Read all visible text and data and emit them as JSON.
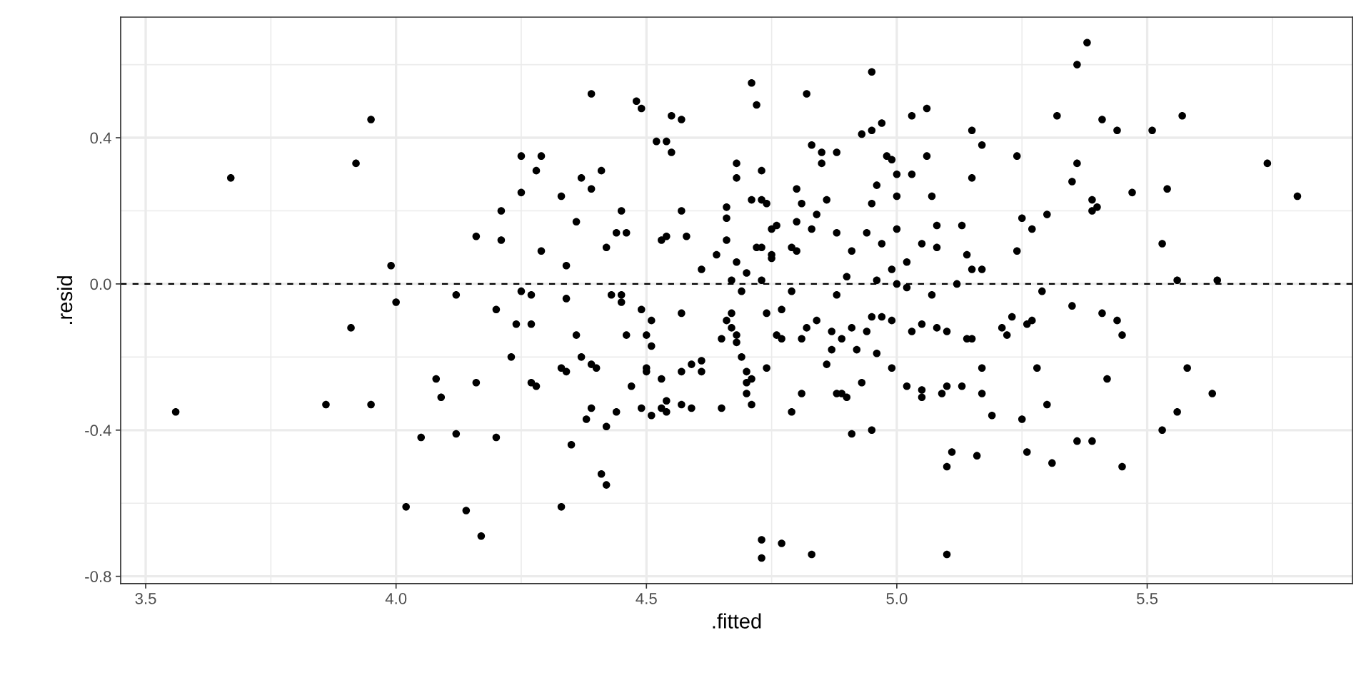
{
  "chart_data": {
    "type": "scatter",
    "xlabel": ".fitted",
    "ylabel": ".resid",
    "color": "#000000",
    "marker": "circle",
    "grid": true,
    "xlim": [
      3.45,
      5.91
    ],
    "ylim": [
      -0.82,
      0.73
    ],
    "xticks": [
      {
        "value": 3.5,
        "label": "3.5"
      },
      {
        "value": 3.75,
        "label": null
      },
      {
        "value": 4,
        "label": "4.0"
      },
      {
        "value": 4.25,
        "label": null
      },
      {
        "value": 4.5,
        "label": "4.5"
      },
      {
        "value": 4.75,
        "label": null
      },
      {
        "value": 5,
        "label": "5.0"
      },
      {
        "value": 5.25,
        "label": null
      },
      {
        "value": 5.5,
        "label": "5.5"
      },
      {
        "value": 5.75,
        "label": null
      }
    ],
    "yticks": [
      {
        "value": -0.8,
        "label": "-0.8"
      },
      {
        "value": -0.6,
        "label": null
      },
      {
        "value": -0.4,
        "label": "-0.4"
      },
      {
        "value": -0.2,
        "label": null
      },
      {
        "value": 0,
        "label": "0.0"
      },
      {
        "value": 0.2,
        "label": null
      },
      {
        "value": 0.4,
        "label": "0.4"
      },
      {
        "value": 0.6,
        "label": null
      }
    ],
    "ref_lines": [
      {
        "axis": "y",
        "value": 0,
        "line_style": "dashed",
        "color": "#000000"
      }
    ],
    "x": [
      3.56,
      3.67,
      3.86,
      3.91,
      3.92,
      3.95,
      3.95,
      3.99,
      4.0,
      4.02,
      4.05,
      4.08,
      4.09,
      4.12,
      4.12,
      4.14,
      4.16,
      4.16,
      4.17,
      4.2,
      4.2,
      4.21,
      4.21,
      4.23,
      4.24,
      4.25,
      4.25,
      4.25,
      4.28,
      4.29,
      4.33,
      4.29,
      4.27,
      4.34,
      4.34,
      4.36,
      4.37,
      4.39,
      4.39,
      4.41,
      4.42,
      4.43,
      4.45,
      4.44,
      4.46,
      4.45,
      4.45,
      4.48,
      4.49,
      4.49,
      4.52,
      4.54,
      4.55,
      4.55,
      4.57,
      4.53,
      4.54,
      4.57,
      4.58,
      4.57,
      4.61,
      4.64,
      4.66,
      4.66,
      4.66,
      4.68,
      4.67,
      4.67,
      4.69,
      4.68,
      4.68,
      4.7,
      4.71,
      4.71,
      4.72,
      4.72,
      4.73,
      4.73,
      4.73,
      4.73,
      4.74,
      4.75,
      4.76,
      4.75,
      4.75,
      4.74,
      4.77,
      4.79,
      4.8,
      4.8,
      4.79,
      4.8,
      4.81,
      4.82,
      4.83,
      4.83,
      4.84,
      4.85,
      4.85,
      4.86,
      4.88,
      4.88,
      4.88,
      4.9,
      4.91,
      4.93,
      4.95,
      4.94,
      4.95,
      4.95,
      4.96,
      4.96,
      4.97,
      4.97,
      4.98,
      4.99,
      4.99,
      5.0,
      5.0,
      5.0,
      5.0,
      5.02,
      5.02,
      5.03,
      5.03,
      5.05,
      5.06,
      5.06,
      5.07,
      5.08,
      5.08,
      5.07,
      4.27,
      4.27,
      4.28,
      4.36,
      4.37,
      4.33,
      4.34,
      4.39,
      4.4,
      4.39,
      4.38,
      4.42,
      4.35,
      4.41,
      4.42,
      4.33,
      4.46,
      4.44,
      4.47,
      4.51,
      4.5,
      4.51,
      4.5,
      4.5,
      4.49,
      4.51,
      4.53,
      4.53,
      4.54,
      4.54,
      4.57,
      4.59,
      4.61,
      4.61,
      4.57,
      4.59,
      4.65,
      4.65,
      4.66,
      4.67,
      4.68,
      4.68,
      4.69,
      4.7,
      4.71,
      4.7,
      4.7,
      4.71,
      4.73,
      4.73,
      4.77,
      4.83,
      4.74,
      4.76,
      4.77,
      4.81,
      4.81,
      4.79,
      4.82,
      4.84,
      4.87,
      4.86,
      4.87,
      4.89,
      4.91,
      4.92,
      4.94,
      4.93,
      4.88,
      4.89,
      4.9,
      4.91,
      4.95,
      4.95,
      4.97,
      4.96,
      4.99,
      4.99,
      5.03,
      5.05,
      5.02,
      5.05,
      5.05,
      5.08,
      5.09,
      5.12,
      5.13,
      5.14,
      5.15,
      5.15,
      5.15,
      5.17,
      5.17,
      5.24,
      5.24,
      5.25,
      5.27,
      5.29,
      5.3,
      5.32,
      5.35,
      5.35,
      5.36,
      5.36,
      5.38,
      5.39,
      5.39,
      5.4,
      5.41,
      5.44,
      5.47,
      5.51,
      5.54,
      5.53,
      5.56,
      5.57,
      5.64,
      5.74,
      5.8,
      5.1,
      5.14,
      5.15,
      5.1,
      5.13,
      5.17,
      5.17,
      5.19,
      5.11,
      5.1,
      5.16,
      5.1,
      5.21,
      5.22,
      5.23,
      5.26,
      5.27,
      5.28,
      5.3,
      5.25,
      5.26,
      5.31,
      5.41,
      5.44,
      5.45,
      5.42,
      5.36,
      5.39,
      5.45,
      5.58,
      5.63,
      5.56,
      5.53
    ],
    "values": [
      -0.35,
      0.29,
      -0.33,
      -0.12,
      0.33,
      -0.33,
      0.45,
      0.05,
      -0.05,
      -0.61,
      -0.42,
      -0.26,
      -0.31,
      -0.03,
      -0.41,
      -0.62,
      0.13,
      -0.27,
      -0.69,
      -0.07,
      -0.42,
      0.2,
      0.12,
      -0.2,
      -0.11,
      -0.02,
      0.35,
      0.25,
      0.31,
      0.35,
      0.24,
      0.09,
      -0.03,
      0.05,
      -0.04,
      0.17,
      0.29,
      0.52,
      0.26,
      0.31,
      0.1,
      -0.03,
      0.2,
      0.14,
      0.14,
      -0.03,
      -0.05,
      0.5,
      0.48,
      -0.07,
      0.39,
      0.39,
      0.46,
      0.36,
      0.45,
      0.12,
      0.13,
      0.2,
      0.13,
      -0.08,
      0.04,
      0.08,
      0.18,
      0.21,
      0.12,
      0.06,
      0.01,
      -0.08,
      -0.02,
      0.29,
      0.33,
      0.03,
      0.55,
      0.23,
      0.49,
      0.1,
      0.1,
      0.01,
      0.31,
      0.23,
      0.22,
      0.15,
      0.16,
      0.07,
      0.08,
      -0.08,
      -0.07,
      -0.02,
      0.26,
      0.17,
      0.1,
      0.09,
      0.22,
      0.52,
      0.38,
      0.15,
      0.19,
      0.33,
      0.36,
      0.23,
      0.14,
      0.36,
      -0.03,
      0.02,
      0.09,
      0.41,
      0.22,
      0.14,
      0.58,
      0.42,
      0.27,
      0.01,
      0.11,
      0.44,
      0.35,
      0.34,
      0.04,
      0.3,
      0.15,
      0.24,
      0.0,
      0.06,
      -0.01,
      0.46,
      0.3,
      0.11,
      0.48,
      0.35,
      0.24,
      0.16,
      0.1,
      -0.03,
      -0.11,
      -0.27,
      -0.28,
      -0.14,
      -0.2,
      -0.23,
      -0.24,
      -0.22,
      -0.23,
      -0.34,
      -0.37,
      -0.39,
      -0.44,
      -0.52,
      -0.55,
      -0.61,
      -0.14,
      -0.35,
      -0.28,
      -0.1,
      -0.14,
      -0.17,
      -0.23,
      -0.24,
      -0.34,
      -0.36,
      -0.26,
      -0.34,
      -0.32,
      -0.35,
      -0.24,
      -0.22,
      -0.21,
      -0.24,
      -0.33,
      -0.34,
      -0.34,
      -0.15,
      -0.1,
      -0.12,
      -0.14,
      -0.16,
      -0.2,
      -0.24,
      -0.26,
      -0.27,
      -0.3,
      -0.33,
      -0.7,
      -0.75,
      -0.71,
      -0.74,
      -0.23,
      -0.14,
      -0.15,
      -0.15,
      -0.3,
      -0.35,
      -0.12,
      -0.1,
      -0.18,
      -0.22,
      -0.13,
      -0.15,
      -0.12,
      -0.18,
      -0.13,
      -0.27,
      -0.3,
      -0.3,
      -0.31,
      -0.41,
      -0.4,
      -0.09,
      -0.09,
      -0.19,
      -0.1,
      -0.23,
      -0.13,
      -0.11,
      -0.28,
      -0.29,
      -0.31,
      -0.12,
      -0.3,
      0.0,
      0.16,
      0.08,
      0.42,
      0.29,
      0.04,
      0.04,
      0.38,
      0.35,
      0.09,
      0.18,
      0.15,
      -0.02,
      0.19,
      0.46,
      -0.06,
      0.28,
      0.33,
      0.6,
      0.66,
      0.23,
      0.2,
      0.21,
      0.45,
      0.42,
      0.25,
      0.42,
      0.26,
      0.11,
      0.01,
      0.46,
      0.01,
      0.33,
      0.24,
      -0.13,
      -0.15,
      -0.15,
      -0.28,
      -0.28,
      -0.23,
      -0.3,
      -0.36,
      -0.46,
      -0.5,
      -0.47,
      -0.74,
      -0.12,
      -0.14,
      -0.09,
      -0.11,
      -0.1,
      -0.23,
      -0.33,
      -0.37,
      -0.46,
      -0.49,
      -0.08,
      -0.1,
      -0.14,
      -0.26,
      -0.43,
      -0.43,
      -0.5,
      -0.23,
      -0.3,
      -0.35,
      -0.4
    ]
  }
}
